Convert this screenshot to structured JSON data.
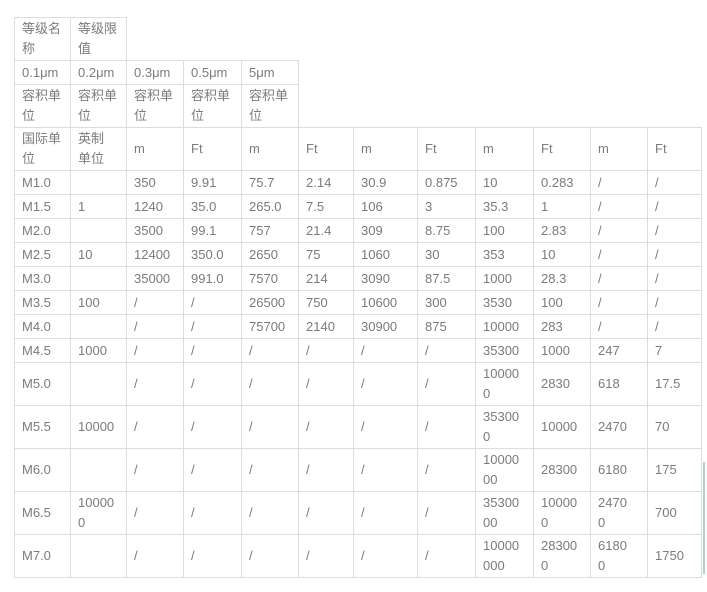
{
  "theme": {
    "border_color": "#dddddd",
    "text_color": "#7b7b7b",
    "scrollbar_color": "#a3d5d5",
    "background_color": "#ffffff"
  },
  "table": {
    "header": {
      "grade_name": "等级名\n称",
      "grade_limit": "等级限\n值",
      "sizes": [
        "0.1μm",
        "0.2μm",
        "0.3μm",
        "0.5μm",
        "5μm"
      ],
      "volume_unit": "容积单\n位",
      "intl_unit": "国际单\n位",
      "imperial_unit": "英制\n单位",
      "unit_m": "m",
      "unit_ft": "Ft"
    },
    "rows": [
      {
        "grade": "M1.0",
        "limit": "",
        "values": [
          "350",
          "9.91",
          "75.7",
          "2.14",
          "30.9",
          "0.875",
          "10",
          "0.283",
          "/",
          "/"
        ]
      },
      {
        "grade": "M1.5",
        "limit": "1",
        "values": [
          "1240",
          "35.0",
          "265.0",
          "7.5",
          "106",
          "3",
          "35.3",
          "1",
          "/",
          "/"
        ]
      },
      {
        "grade": "M2.0",
        "limit": "",
        "values": [
          "3500",
          "99.1",
          "757",
          "21.4",
          "309",
          "8.75",
          "100",
          "2.83",
          "/",
          "/"
        ]
      },
      {
        "grade": "M2.5",
        "limit": "10",
        "values": [
          "12400",
          "350.0",
          "2650",
          "75",
          "1060",
          "30",
          "353",
          "10",
          "/",
          "/"
        ]
      },
      {
        "grade": "M3.0",
        "limit": "",
        "values": [
          "35000",
          "991.0",
          "7570",
          "214",
          "3090",
          "87.5",
          "1000",
          "28.3",
          "/",
          "/"
        ]
      },
      {
        "grade": "M3.5",
        "limit": "100",
        "values": [
          "/",
          "/",
          "26500",
          "750",
          "10600",
          "300",
          "3530",
          "100",
          "/",
          "/"
        ]
      },
      {
        "grade": "M4.0",
        "limit": "",
        "values": [
          "/",
          "/",
          "75700",
          "2140",
          "30900",
          "875",
          "10000",
          "283",
          "/",
          "/"
        ]
      },
      {
        "grade": "M4.5",
        "limit": "1000",
        "values": [
          "/",
          "/",
          "/",
          "/",
          "/",
          "/",
          "35300",
          "1000",
          "247",
          "7"
        ]
      },
      {
        "grade": "M5.0",
        "limit": "",
        "values": [
          "/",
          "/",
          "/",
          "/",
          "/",
          "/",
          "10000\n0",
          "2830",
          "618",
          "17.5"
        ]
      },
      {
        "grade": "M5.5",
        "limit": "10000",
        "values": [
          "/",
          "/",
          "/",
          "/",
          "/",
          "/",
          "35300\n0",
          "10000",
          "2470",
          "70"
        ]
      },
      {
        "grade": "M6.0",
        "limit": "",
        "values": [
          "/",
          "/",
          "/",
          "/",
          "/",
          "/",
          "10000\n00",
          "28300",
          "6180",
          "175"
        ]
      },
      {
        "grade": "M6.5",
        "limit": "10000\n0",
        "values": [
          "/",
          "/",
          "/",
          "/",
          "/",
          "/",
          "35300\n00",
          "10000\n0",
          "2470\n0",
          "700"
        ]
      },
      {
        "grade": "M7.0",
        "limit": "",
        "values": [
          "/",
          "/",
          "/",
          "/",
          "/",
          "/",
          "10000\n000",
          "28300\n0",
          "6180\n0",
          "1750"
        ]
      }
    ]
  }
}
